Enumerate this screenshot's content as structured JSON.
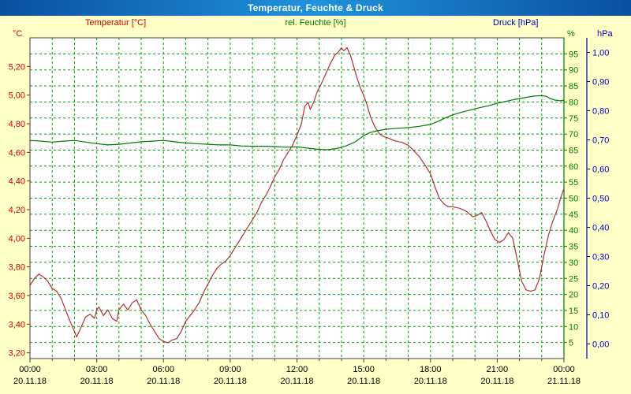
{
  "window": {
    "title": "Temperatur, Feuchte & Druck"
  },
  "colors": {
    "background": "#FFFFC8",
    "plot_bg": "#FFFFFF",
    "grid": "#00A000",
    "frame": "#404040",
    "temp": "#CC0000",
    "temp_line": "#B03030",
    "hum": "#007A00",
    "press": "#0000C0",
    "x_label": "#000000"
  },
  "chart_data": {
    "type": "line",
    "title": "Temperatur, Feuchte & Druck",
    "grid": true,
    "legend_position": "top",
    "series": [
      {
        "name": "Temperatur [°C]",
        "axis": "temp",
        "color": "#B03030",
        "points": [
          [
            0,
            3.67
          ],
          [
            0.2,
            3.72
          ],
          [
            0.4,
            3.75
          ],
          [
            0.6,
            3.73
          ],
          [
            0.8,
            3.7
          ],
          [
            1,
            3.65
          ],
          [
            1.2,
            3.63
          ],
          [
            1.4,
            3.58
          ],
          [
            1.6,
            3.5
          ],
          [
            1.8,
            3.42
          ],
          [
            2,
            3.35
          ],
          [
            2.1,
            3.31
          ],
          [
            2.3,
            3.38
          ],
          [
            2.5,
            3.45
          ],
          [
            2.7,
            3.47
          ],
          [
            2.9,
            3.44
          ],
          [
            3,
            3.5
          ],
          [
            3.1,
            3.52
          ],
          [
            3.3,
            3.46
          ],
          [
            3.5,
            3.5
          ],
          [
            3.7,
            3.44
          ],
          [
            3.9,
            3.42
          ],
          [
            4,
            3.5
          ],
          [
            4.2,
            3.54
          ],
          [
            4.4,
            3.5
          ],
          [
            4.6,
            3.55
          ],
          [
            4.8,
            3.57
          ],
          [
            5,
            3.5
          ],
          [
            5.2,
            3.46
          ],
          [
            5.4,
            3.4
          ],
          [
            5.6,
            3.35
          ],
          [
            5.8,
            3.3
          ],
          [
            6,
            3.28
          ],
          [
            6.2,
            3.27
          ],
          [
            6.4,
            3.29
          ],
          [
            6.6,
            3.3
          ],
          [
            6.8,
            3.35
          ],
          [
            7,
            3.42
          ],
          [
            7.2,
            3.46
          ],
          [
            7.4,
            3.5
          ],
          [
            7.6,
            3.55
          ],
          [
            7.8,
            3.62
          ],
          [
            8,
            3.68
          ],
          [
            8.2,
            3.74
          ],
          [
            8.4,
            3.79
          ],
          [
            8.6,
            3.82
          ],
          [
            8.8,
            3.84
          ],
          [
            9,
            3.88
          ],
          [
            9.2,
            3.93
          ],
          [
            9.4,
            3.98
          ],
          [
            9.6,
            4.03
          ],
          [
            9.8,
            4.08
          ],
          [
            10,
            4.13
          ],
          [
            10.2,
            4.18
          ],
          [
            10.4,
            4.25
          ],
          [
            10.6,
            4.3
          ],
          [
            10.8,
            4.36
          ],
          [
            11,
            4.43
          ],
          [
            11.2,
            4.48
          ],
          [
            11.4,
            4.55
          ],
          [
            11.6,
            4.6
          ],
          [
            11.8,
            4.65
          ],
          [
            12,
            4.72
          ],
          [
            12.2,
            4.8
          ],
          [
            12.35,
            4.92
          ],
          [
            12.5,
            4.95
          ],
          [
            12.6,
            4.9
          ],
          [
            12.75,
            4.95
          ],
          [
            12.9,
            5.02
          ],
          [
            13.1,
            5.08
          ],
          [
            13.3,
            5.15
          ],
          [
            13.5,
            5.22
          ],
          [
            13.7,
            5.28
          ],
          [
            13.85,
            5.3
          ],
          [
            14,
            5.33
          ],
          [
            14.1,
            5.31
          ],
          [
            14.25,
            5.33
          ],
          [
            14.4,
            5.28
          ],
          [
            14.55,
            5.2
          ],
          [
            14.7,
            5.12
          ],
          [
            14.85,
            5.05
          ],
          [
            15,
            5.0
          ],
          [
            15.15,
            4.93
          ],
          [
            15.3,
            4.85
          ],
          [
            15.5,
            4.78
          ],
          [
            15.7,
            4.73
          ],
          [
            15.9,
            4.71
          ],
          [
            16.1,
            4.7
          ],
          [
            16.4,
            4.68
          ],
          [
            16.7,
            4.67
          ],
          [
            17,
            4.65
          ],
          [
            17.2,
            4.62
          ],
          [
            17.5,
            4.57
          ],
          [
            17.8,
            4.5
          ],
          [
            18,
            4.45
          ],
          [
            18.2,
            4.36
          ],
          [
            18.4,
            4.28
          ],
          [
            18.6,
            4.24
          ],
          [
            18.8,
            4.22
          ],
          [
            19,
            4.22
          ],
          [
            19.3,
            4.21
          ],
          [
            19.6,
            4.19
          ],
          [
            19.9,
            4.15
          ],
          [
            20.1,
            4.16
          ],
          [
            20.3,
            4.18
          ],
          [
            20.5,
            4.12
          ],
          [
            20.7,
            4.05
          ],
          [
            20.9,
            3.99
          ],
          [
            21.1,
            3.97
          ],
          [
            21.3,
            3.99
          ],
          [
            21.5,
            4.04
          ],
          [
            21.7,
            4.0
          ],
          [
            21.9,
            3.85
          ],
          [
            22.1,
            3.7
          ],
          [
            22.3,
            3.64
          ],
          [
            22.5,
            3.63
          ],
          [
            22.7,
            3.64
          ],
          [
            22.9,
            3.72
          ],
          [
            23.1,
            3.88
          ],
          [
            23.3,
            4.02
          ],
          [
            23.5,
            4.12
          ],
          [
            23.7,
            4.2
          ],
          [
            23.85,
            4.28
          ],
          [
            24,
            4.35
          ]
        ]
      },
      {
        "name": "rel. Feuchte [%]",
        "axis": "hum",
        "color": "#007A00",
        "points": [
          [
            0,
            68
          ],
          [
            0.5,
            67.8
          ],
          [
            1,
            67.5
          ],
          [
            1.5,
            67.8
          ],
          [
            2,
            68
          ],
          [
            2.5,
            67.5
          ],
          [
            3,
            67
          ],
          [
            3.5,
            66.6
          ],
          [
            4,
            66.8
          ],
          [
            4.5,
            67.2
          ],
          [
            5,
            67.6
          ],
          [
            5.5,
            67.8
          ],
          [
            6,
            68
          ],
          [
            6.5,
            67.6
          ],
          [
            7,
            67.2
          ],
          [
            7.5,
            67
          ],
          [
            8,
            66.8
          ],
          [
            8.5,
            66.6
          ],
          [
            9,
            66.6
          ],
          [
            9.5,
            66.3
          ],
          [
            10,
            66.2
          ],
          [
            10.5,
            66.2
          ],
          [
            11,
            66.1
          ],
          [
            11.5,
            65.9
          ],
          [
            12,
            66
          ],
          [
            12.5,
            65.6
          ],
          [
            13,
            65.2
          ],
          [
            13.4,
            65.1
          ],
          [
            13.8,
            65.5
          ],
          [
            14.2,
            66.3
          ],
          [
            14.6,
            67.5
          ],
          [
            15,
            69.5
          ],
          [
            15.3,
            70.5
          ],
          [
            15.6,
            71
          ],
          [
            16,
            71.5
          ],
          [
            16.5,
            71.8
          ],
          [
            17,
            72
          ],
          [
            17.5,
            72.4
          ],
          [
            18,
            73
          ],
          [
            18.3,
            73.8
          ],
          [
            18.6,
            74.8
          ],
          [
            19,
            76
          ],
          [
            19.4,
            76.8
          ],
          [
            19.8,
            77.5
          ],
          [
            20.2,
            78.2
          ],
          [
            20.6,
            78.8
          ],
          [
            21,
            79.6
          ],
          [
            21.4,
            80.2
          ],
          [
            21.8,
            80.8
          ],
          [
            22.2,
            81.3
          ],
          [
            22.6,
            81.8
          ],
          [
            23,
            82
          ],
          [
            23.2,
            81.8
          ],
          [
            23.4,
            81
          ],
          [
            23.6,
            80.6
          ],
          [
            23.8,
            80.4
          ],
          [
            24,
            80.5
          ]
        ]
      },
      {
        "name": "Druck [hPa]",
        "axis": "press",
        "color": "#0000C0",
        "points": []
      }
    ],
    "axes": {
      "temp": {
        "unit": "°C",
        "min": 3.16,
        "max": 5.4,
        "color": "#CC0000",
        "ticks": [
          3.2,
          3.4,
          3.6,
          3.8,
          4.0,
          4.2,
          4.4,
          4.6,
          4.8,
          5.0,
          5.2
        ]
      },
      "hum": {
        "unit": "%",
        "min": 0,
        "max": 100,
        "color": "#007A00",
        "ticks": [
          5,
          10,
          15,
          20,
          25,
          30,
          35,
          40,
          45,
          50,
          55,
          60,
          65,
          70,
          75,
          80,
          85,
          90,
          95
        ]
      },
      "press": {
        "unit": "hPa",
        "min": -0.05,
        "max": 1.05,
        "color": "#0000C0",
        "ticks": [
          0.0,
          0.1,
          0.2,
          0.3,
          0.4,
          0.5,
          0.6,
          0.7,
          0.8,
          0.9,
          1.0
        ]
      },
      "x": {
        "hours": 24,
        "grid_every_hours": 1,
        "major": [
          {
            "time": "00:00",
            "date": "20.11.18"
          },
          {
            "time": "03:00",
            "date": "20.11.18"
          },
          {
            "time": "06:00",
            "date": "20.11.18"
          },
          {
            "time": "09:00",
            "date": "20.11.18"
          },
          {
            "time": "12:00",
            "date": "20.11.18"
          },
          {
            "time": "15:00",
            "date": "20.11.18"
          },
          {
            "time": "18:00",
            "date": "20.11.18"
          },
          {
            "time": "21:00",
            "date": "20.11.18"
          },
          {
            "time": "00:00",
            "date": "21.11.18"
          }
        ]
      }
    }
  }
}
